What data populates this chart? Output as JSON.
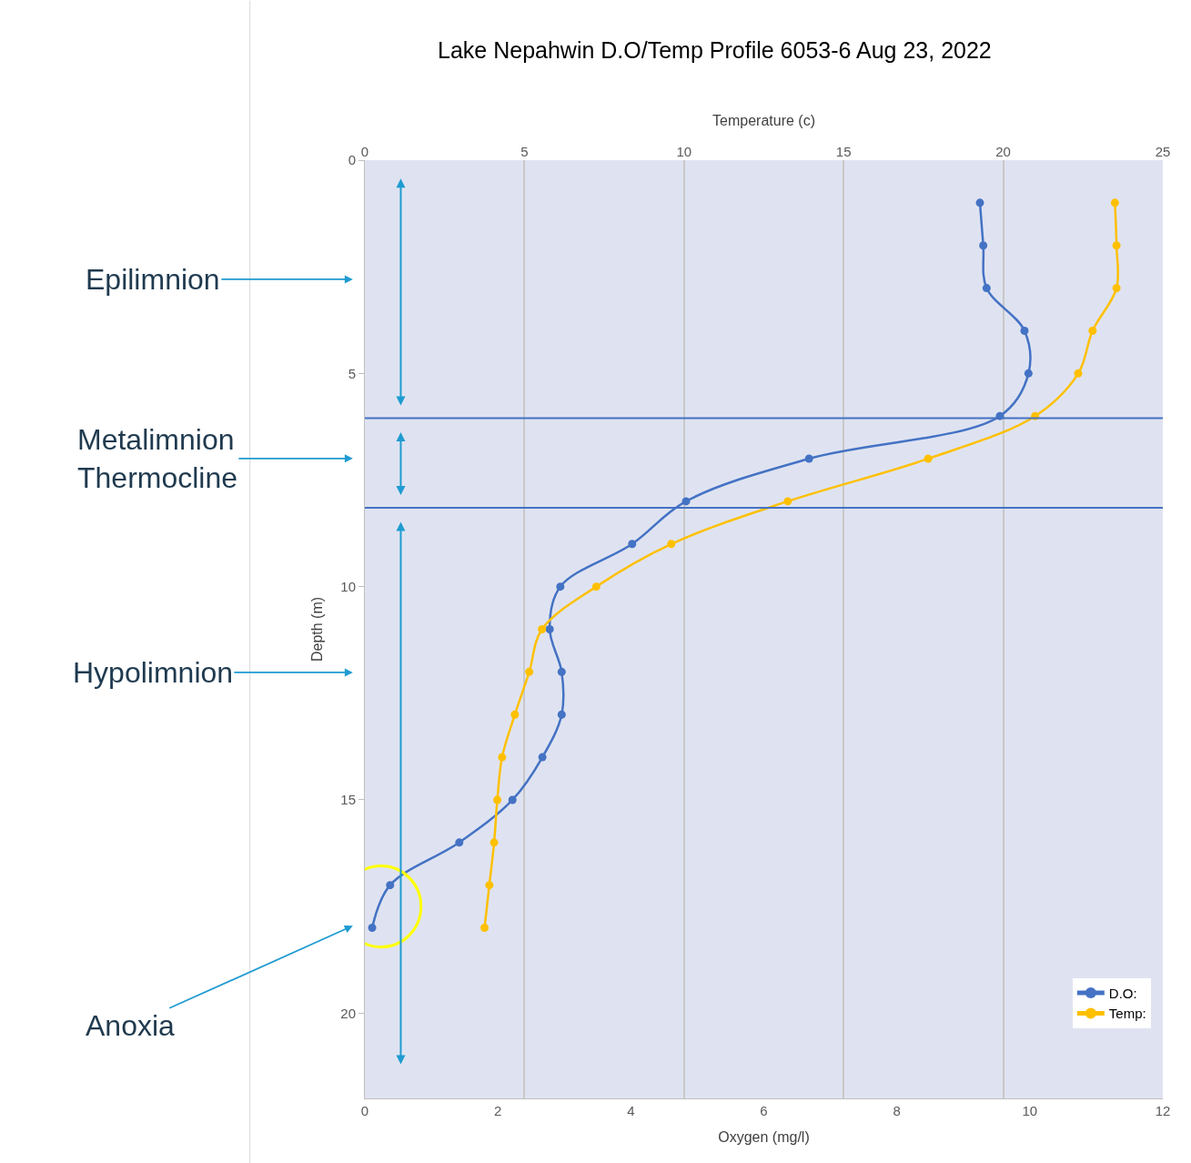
{
  "chart_data": {
    "type": "line",
    "title": "Lake Nepahwin D.O/Temp Profile 6053-6 Aug 23, 2022",
    "xlabel": "Oxygen (mg/l)",
    "x2label": "Temperature (c)",
    "ylabel": "Depth (m)",
    "xlim": [
      0,
      12
    ],
    "xticks": [
      0,
      2,
      4,
      6,
      8,
      10,
      12
    ],
    "x2lim": [
      0,
      25
    ],
    "x2ticks": [
      0,
      5,
      10,
      15,
      20,
      25
    ],
    "ylim": [
      22,
      0
    ],
    "yticks": [
      0,
      5,
      10,
      15,
      20
    ],
    "grid": "x",
    "legend": "bottom right",
    "marker": "circle",
    "line_style": "solid",
    "series": [
      {
        "name": "D.O:",
        "color": "#4472c4",
        "x": [
          9.25,
          9.3,
          9.35,
          9.92,
          9.98,
          9.55,
          6.68,
          4.83,
          4.02,
          2.94,
          2.78,
          2.96,
          2.96,
          2.67,
          2.22,
          1.42,
          0.38,
          0.11
        ],
        "values": [
          1,
          2,
          3,
          4,
          5,
          6,
          7,
          8,
          9,
          10,
          11,
          12,
          13,
          14,
          15,
          16,
          17,
          18
        ]
      },
      {
        "name": "Temp:",
        "color": "#ffc000",
        "axis": "x2",
        "x": [
          23.5,
          23.55,
          23.55,
          22.8,
          22.35,
          21.0,
          17.65,
          13.25,
          9.6,
          7.25,
          5.55,
          5.15,
          4.7,
          4.3,
          4.15,
          4.05,
          3.9,
          3.75
        ],
        "values": [
          1,
          2,
          3,
          4,
          5,
          6,
          7,
          8,
          9,
          10,
          11,
          12,
          13,
          14,
          15,
          16,
          17,
          18
        ]
      }
    ],
    "ref_lines": [
      {
        "axis": "y",
        "value": 6.05,
        "color": "#4472c4"
      },
      {
        "axis": "y",
        "value": 8.15,
        "color": "#4472c4"
      }
    ],
    "annotations": [
      "Epilimnion",
      "Metalimnion\nThermocline",
      "Hypolimnion",
      "Anoxia"
    ]
  }
}
